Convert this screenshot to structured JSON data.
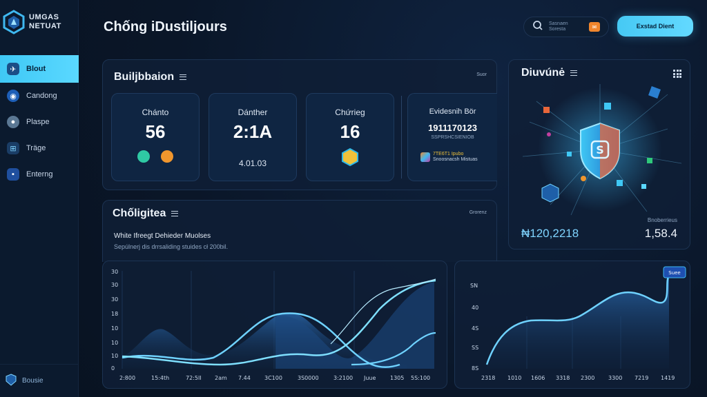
{
  "app": {
    "logo_line1": "UMGAS",
    "logo_line2": "NETUAT",
    "title": "Chống iDustiljours"
  },
  "header": {
    "search_placeholder": "Sasnaen Soresta",
    "cta_label": "Exstad Dient"
  },
  "sidebar": {
    "items": [
      {
        "label": "Blout",
        "icon": "plane-icon",
        "active": true
      },
      {
        "label": "Candong",
        "icon": "dashboard-icon",
        "active": false
      },
      {
        "label": "Plaspe",
        "icon": "globe-icon",
        "active": false
      },
      {
        "label": "Träge",
        "icon": "network-icon",
        "active": false
      },
      {
        "label": "Enterng",
        "icon": "document-icon",
        "active": false
      }
    ],
    "footer_label": "Bousie"
  },
  "stats_panel": {
    "title": "Builjbbaion",
    "corner": "Suor",
    "cards": [
      {
        "label": "Chánto",
        "value": "56",
        "sub": ""
      },
      {
        "label": "Dánther",
        "value": "2:1A",
        "sub": "4.01.03"
      },
      {
        "label": "Chứrieg",
        "value": "16",
        "sub": ""
      },
      {
        "label": "Evidesnih Bör",
        "value": "1911170123",
        "sub": "SSPRSHCSIENIOB"
      }
    ],
    "card4_caption_line1": "7TE6T1 Ipubo",
    "card4_caption_line2": "Snoosnacsh Mistuas"
  },
  "security_panel": {
    "title": "Diuvúnė",
    "sub_label": "Bnoberrieus",
    "left_value": "₦120,2218",
    "right_value": "1,58.4"
  },
  "analytics_panel": {
    "title": "Chốligitea",
    "corner": "Grorenz",
    "subtitle": "White Ifreegt Dehieder Muolses",
    "description": "Sepúlnerj dis drrsaliding stuides cł 200bil."
  },
  "chart_left": {
    "y_ticks": [
      "30",
      "30",
      "30",
      "18",
      "10",
      "10",
      "10",
      "0"
    ],
    "x_ticks": [
      "2:800",
      "15:4th",
      "72:5II",
      "2am",
      "7.44",
      "3C100",
      "3S0000",
      "3:2100",
      "Juue",
      "1305",
      "5S:100"
    ]
  },
  "chart_right": {
    "badge": "Suee",
    "y_ticks": [
      "SN",
      "40",
      "4S",
      "SS",
      "8S",
      "0"
    ],
    "x_ticks": [
      "2318",
      "1010",
      "1606",
      "3318",
      "2300",
      "3300",
      "7219",
      "1419"
    ]
  },
  "colors": {
    "accent": "#46c9f4",
    "background": "#0a1628",
    "panel": "#0f1f36"
  }
}
